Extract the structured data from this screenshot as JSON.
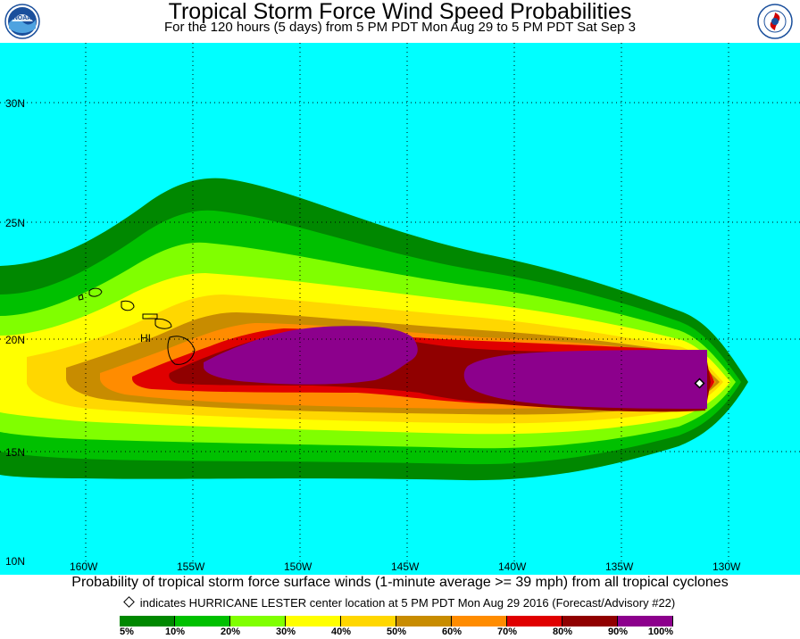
{
  "header": {
    "title": "Tropical Storm Force Wind Speed Probabilities",
    "subtitle": "For the 120 hours (5 days) from 5 PM PDT Mon Aug 29 to 5 PM PDT Sat Sep 3"
  },
  "logos": [
    {
      "name": "noaa-logo",
      "icon": "noaa-logo-icon",
      "text": "NOAA"
    },
    {
      "name": "nws-logo",
      "icon": "nws-logo-icon",
      "text": "NATIONAL WEATHER SERVICE"
    }
  ],
  "map": {
    "background_color": "#00ffff",
    "lat_labels": [
      "30N",
      "25N",
      "20N",
      "15N",
      "10N"
    ],
    "lon_labels": [
      "160W",
      "155W",
      "150W",
      "145W",
      "140W",
      "135W",
      "130W"
    ],
    "place_label": "HI"
  },
  "footer": {
    "description": "Probability of tropical storm force surface winds (1-minute average >= 39 mph) from all tropical cyclones",
    "storm_note": "indicates HURRICANE LESTER center location at 5 PM PDT Mon Aug 29 2016 (Forecast/Advisory #22)"
  },
  "legend": {
    "colors": [
      "#008800",
      "#00c000",
      "#80ff00",
      "#ffff00",
      "#ffd700",
      "#c88c00",
      "#ff8c00",
      "#e00000",
      "#900000",
      "#8c008c"
    ],
    "labels": [
      "5%",
      "10%",
      "20%",
      "30%",
      "40%",
      "50%",
      "60%",
      "70%",
      "80%",
      "90%",
      "100%"
    ]
  }
}
